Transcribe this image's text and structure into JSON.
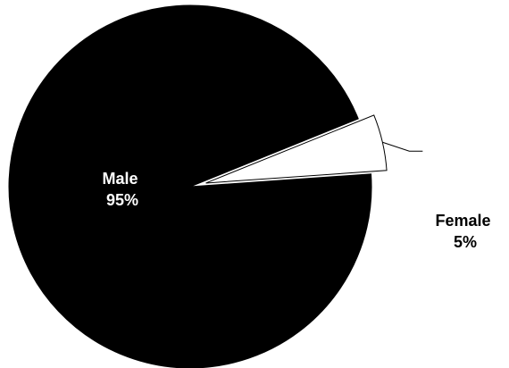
{
  "chart_data": {
    "type": "pie",
    "title": "",
    "legend": "none",
    "colors": {
      "Male": "#000000",
      "Female": "#ffffff",
      "outline": "#000000"
    },
    "slices": [
      {
        "label": "Male",
        "value": 95,
        "value_label": "95%"
      },
      {
        "label": "Female",
        "value": 5,
        "value_label": "5%"
      }
    ]
  }
}
